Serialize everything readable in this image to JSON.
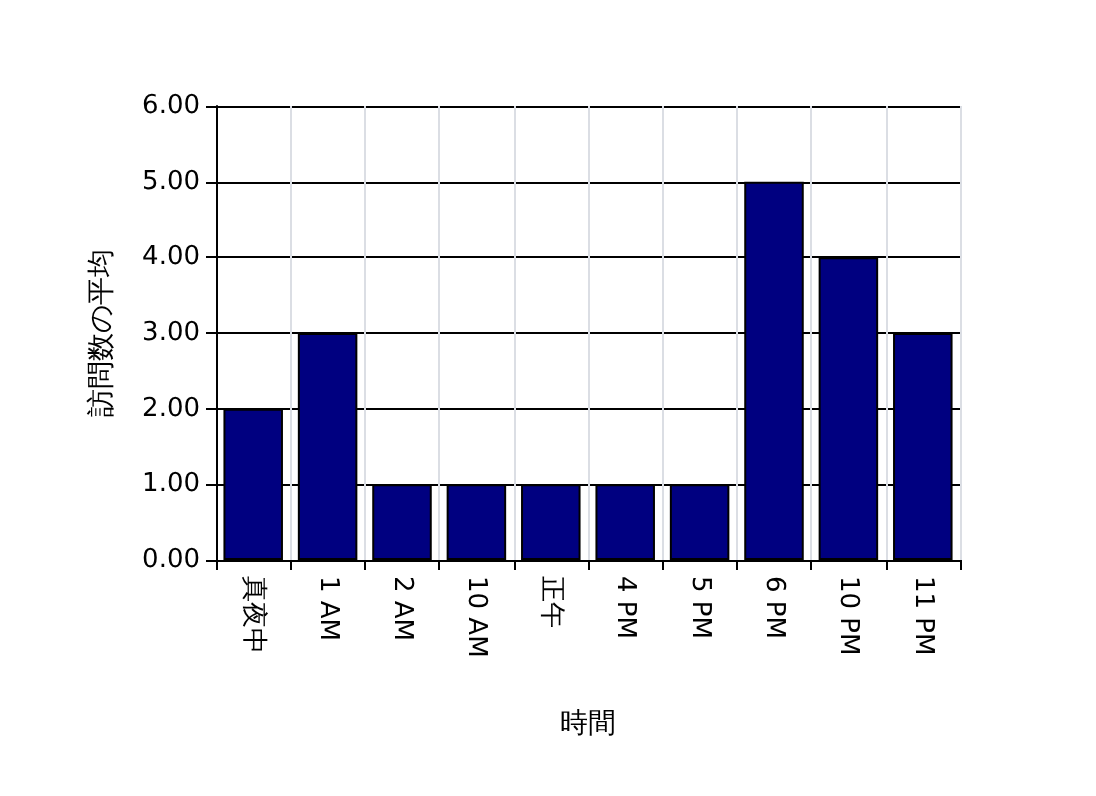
{
  "chart_data": {
    "type": "bar",
    "xlabel": "時間",
    "ylabel": "訪問数の平均",
    "categories": [
      "真夜中",
      "1 AM",
      "2 AM",
      "10 AM",
      "正午",
      "4 PM",
      "5 PM",
      "6 PM",
      "10 PM",
      "11 PM"
    ],
    "values": [
      2,
      3,
      1,
      1,
      1,
      1,
      1,
      5,
      4,
      3
    ],
    "color": "#000080",
    "ylim": [
      0,
      6
    ],
    "yticks": [
      {
        "value": 0,
        "label": "0.00"
      },
      {
        "value": 1,
        "label": "1.00"
      },
      {
        "value": 2,
        "label": "2.00"
      },
      {
        "value": 3,
        "label": "3.00"
      },
      {
        "value": 4,
        "label": "4.00"
      },
      {
        "value": 5,
        "label": "5.00"
      },
      {
        "value": 6,
        "label": "6.00"
      }
    ],
    "grid": true
  }
}
